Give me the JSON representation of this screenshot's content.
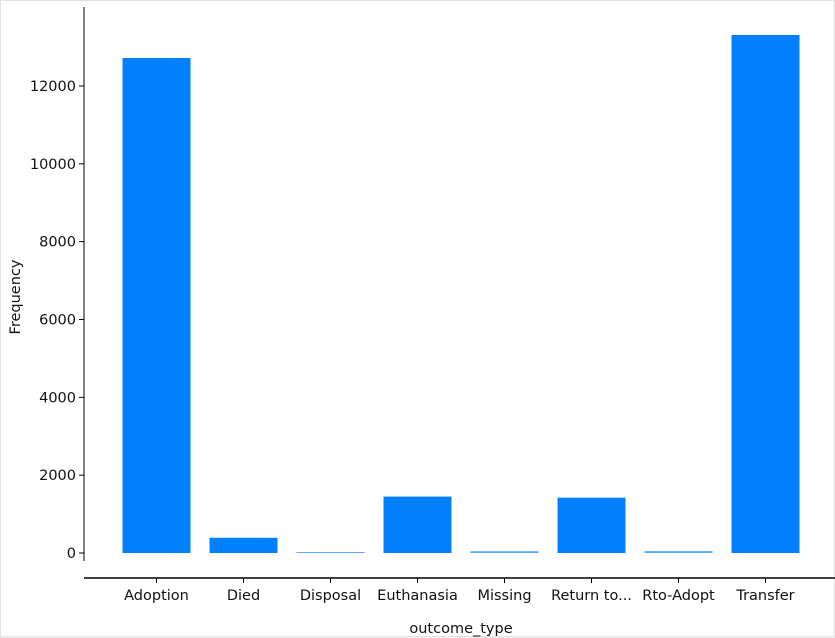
{
  "chart_data": {
    "type": "bar",
    "title": "",
    "xlabel": "outcome_type",
    "ylabel": "Frequency",
    "categories": [
      "Adoption",
      "Died",
      "Disposal",
      "Euthanasia",
      "Missing",
      "Return to...",
      "Rto-Adopt",
      "Transfer"
    ],
    "values": [
      12720,
      390,
      25,
      1450,
      45,
      1420,
      50,
      13310
    ],
    "ylim": [
      0,
      13800
    ],
    "yticks": [
      0,
      2000,
      4000,
      6000,
      8000,
      10000,
      12000
    ],
    "grid": false,
    "legend": "none",
    "bar_color": "#0080ff"
  }
}
